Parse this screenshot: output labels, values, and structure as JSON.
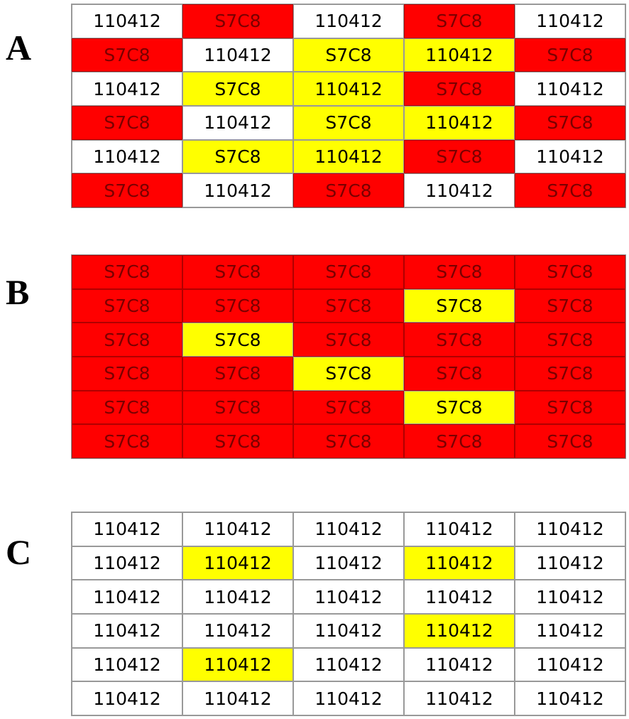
{
  "panels": [
    {
      "label": "A",
      "rows": [
        [
          {
            "text": "110412",
            "color": "#ffffff"
          },
          {
            "text": "S7C8",
            "color": "#ff0000"
          },
          {
            "text": "110412",
            "color": "#ffffff"
          },
          {
            "text": "S7C8",
            "color": "#ff0000"
          },
          {
            "text": "110412",
            "color": "#ffffff"
          }
        ],
        [
          {
            "text": "S7C8",
            "color": "#ff0000"
          },
          {
            "text": "110412",
            "color": "#ffffff"
          },
          {
            "text": "S7C8",
            "color": "#ffff00"
          },
          {
            "text": "110412",
            "color": "#ffff00"
          },
          {
            "text": "S7C8",
            "color": "#ff0000"
          }
        ],
        [
          {
            "text": "110412",
            "color": "#ffffff"
          },
          {
            "text": "S7C8",
            "color": "#ffff00"
          },
          {
            "text": "110412",
            "color": "#ffff00"
          },
          {
            "text": "S7C8",
            "color": "#ff0000"
          },
          {
            "text": "110412",
            "color": "#ffffff"
          }
        ],
        [
          {
            "text": "S7C8",
            "color": "#ff0000"
          },
          {
            "text": "110412",
            "color": "#ffffff"
          },
          {
            "text": "S7C8",
            "color": "#ffff00"
          },
          {
            "text": "110412",
            "color": "#ffff00"
          },
          {
            "text": "S7C8",
            "color": "#ff0000"
          }
        ],
        [
          {
            "text": "110412",
            "color": "#ffffff"
          },
          {
            "text": "S7C8",
            "color": "#ffff00"
          },
          {
            "text": "110412",
            "color": "#ffff00"
          },
          {
            "text": "S7C8",
            "color": "#ff0000"
          },
          {
            "text": "110412",
            "color": "#ffffff"
          }
        ],
        [
          {
            "text": "S7C8",
            "color": "#ff0000"
          },
          {
            "text": "110412",
            "color": "#ffffff"
          },
          {
            "text": "S7C8",
            "color": "#ff0000"
          },
          {
            "text": "110412",
            "color": "#ffffff"
          },
          {
            "text": "S7C8",
            "color": "#ff0000"
          }
        ]
      ]
    },
    {
      "label": "B",
      "rows": [
        [
          {
            "text": "S7C8",
            "color": "#ff0000"
          },
          {
            "text": "S7C8",
            "color": "#ff0000"
          },
          {
            "text": "S7C8",
            "color": "#ff0000"
          },
          {
            "text": "S7C8",
            "color": "#ff0000"
          },
          {
            "text": "S7C8",
            "color": "#ff0000"
          }
        ],
        [
          {
            "text": "S7C8",
            "color": "#ff0000"
          },
          {
            "text": "S7C8",
            "color": "#ff0000"
          },
          {
            "text": "S7C8",
            "color": "#ff0000"
          },
          {
            "text": "S7C8",
            "color": "#ffff00"
          },
          {
            "text": "S7C8",
            "color": "#ff0000"
          }
        ],
        [
          {
            "text": "S7C8",
            "color": "#ff0000"
          },
          {
            "text": "S7C8",
            "color": "#ffff00"
          },
          {
            "text": "S7C8",
            "color": "#ff0000"
          },
          {
            "text": "S7C8",
            "color": "#ff0000"
          },
          {
            "text": "S7C8",
            "color": "#ff0000"
          }
        ],
        [
          {
            "text": "S7C8",
            "color": "#ff0000"
          },
          {
            "text": "S7C8",
            "color": "#ff0000"
          },
          {
            "text": "S7C8",
            "color": "#ffff00"
          },
          {
            "text": "S7C8",
            "color": "#ff0000"
          },
          {
            "text": "S7C8",
            "color": "#ff0000"
          }
        ],
        [
          {
            "text": "S7C8",
            "color": "#ff0000"
          },
          {
            "text": "S7C8",
            "color": "#ff0000"
          },
          {
            "text": "S7C8",
            "color": "#ff0000"
          },
          {
            "text": "S7C8",
            "color": "#ffff00"
          },
          {
            "text": "S7C8",
            "color": "#ff0000"
          }
        ],
        [
          {
            "text": "S7C8",
            "color": "#ff0000"
          },
          {
            "text": "S7C8",
            "color": "#ff0000"
          },
          {
            "text": "S7C8",
            "color": "#ff0000"
          },
          {
            "text": "S7C8",
            "color": "#ff0000"
          },
          {
            "text": "S7C8",
            "color": "#ff0000"
          }
        ]
      ]
    },
    {
      "label": "C",
      "rows": [
        [
          {
            "text": "110412",
            "color": "#ffffff"
          },
          {
            "text": "110412",
            "color": "#ffffff"
          },
          {
            "text": "110412",
            "color": "#ffffff"
          },
          {
            "text": "110412",
            "color": "#ffffff"
          },
          {
            "text": "110412",
            "color": "#ffffff"
          }
        ],
        [
          {
            "text": "110412",
            "color": "#ffffff"
          },
          {
            "text": "110412",
            "color": "#ffff00"
          },
          {
            "text": "110412",
            "color": "#ffffff"
          },
          {
            "text": "110412",
            "color": "#ffff00"
          },
          {
            "text": "110412",
            "color": "#ffffff"
          }
        ],
        [
          {
            "text": "110412",
            "color": "#ffffff"
          },
          {
            "text": "110412",
            "color": "#ffffff"
          },
          {
            "text": "110412",
            "color": "#ffffff"
          },
          {
            "text": "110412",
            "color": "#ffffff"
          },
          {
            "text": "110412",
            "color": "#ffffff"
          }
        ],
        [
          {
            "text": "110412",
            "color": "#ffffff"
          },
          {
            "text": "110412",
            "color": "#ffffff"
          },
          {
            "text": "110412",
            "color": "#ffffff"
          },
          {
            "text": "110412",
            "color": "#ffff00"
          },
          {
            "text": "110412",
            "color": "#ffffff"
          }
        ],
        [
          {
            "text": "110412",
            "color": "#ffffff"
          },
          {
            "text": "110412",
            "color": "#ffff00"
          },
          {
            "text": "110412",
            "color": "#ffffff"
          },
          {
            "text": "110412",
            "color": "#ffffff"
          },
          {
            "text": "110412",
            "color": "#ffffff"
          }
        ],
        [
          {
            "text": "110412",
            "color": "#ffffff"
          },
          {
            "text": "110412",
            "color": "#ffffff"
          },
          {
            "text": "110412",
            "color": "#ffffff"
          },
          {
            "text": "110412",
            "color": "#ffffff"
          },
          {
            "text": "110412",
            "color": "#ffffff"
          }
        ]
      ]
    }
  ]
}
